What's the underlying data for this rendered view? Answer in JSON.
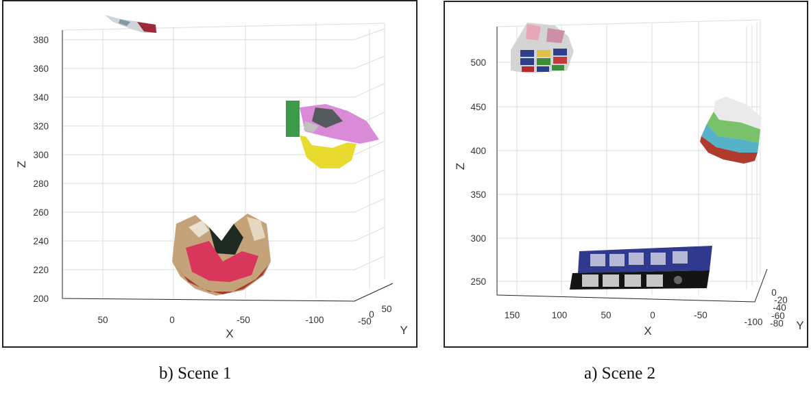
{
  "panels": [
    {
      "caption": "b) Scene 1",
      "z_label": "Z",
      "x_label": "X",
      "y_label": "Y",
      "z_ticks": [
        "380",
        "360",
        "340",
        "320",
        "300",
        "280",
        "260",
        "240",
        "220",
        "200"
      ],
      "x_ticks": [
        "50",
        "0",
        "-50",
        "-100"
      ],
      "y_ticks": [
        "-50",
        "0",
        "50"
      ],
      "objects": [
        "colorful-bowl-point-cloud",
        "yellow-pink-cup-point-cloud",
        "small-object-point-cloud"
      ]
    },
    {
      "caption": "a) Scene 2",
      "z_label": "Z",
      "x_label": "X",
      "y_label": "Y",
      "z_ticks": [
        "500",
        "450",
        "400",
        "350",
        "300",
        "250"
      ],
      "x_ticks": [
        "150",
        "100",
        "50",
        "0",
        "-50",
        "-100"
      ],
      "y_ticks": [
        "-80",
        "-60",
        "-40",
        "-20",
        "0"
      ],
      "objects": [
        "book-with-text-point-cloud",
        "striped-curved-surface-point-cloud",
        "color-checker-point-cloud"
      ]
    }
  ]
}
